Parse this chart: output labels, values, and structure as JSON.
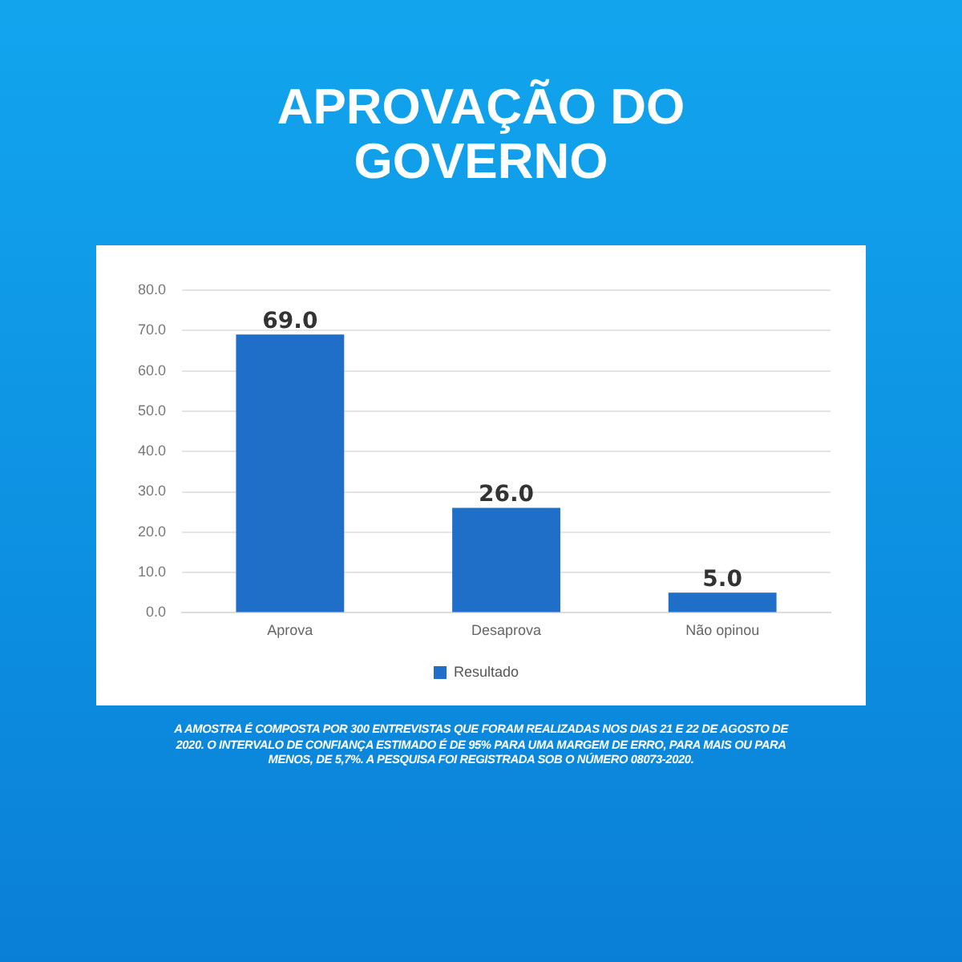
{
  "chart_data": {
    "type": "bar",
    "title": "APROVAÇÃO DO GOVERNO",
    "categories": [
      "Aprova",
      "Desaprova",
      "Não opinou"
    ],
    "series": [
      {
        "name": "Resultado",
        "color": "#1f6fc8",
        "values": [
          69,
          26,
          5
        ],
        "value_labels": [
          "69.0",
          "26.0",
          "5.0"
        ]
      }
    ],
    "ylim": [
      0,
      80
    ],
    "yticks": [
      {
        "value": 0,
        "label": "0.0"
      },
      {
        "value": 10,
        "label": "10.0"
      },
      {
        "value": 20,
        "label": "20.0"
      },
      {
        "value": 30,
        "label": "30.0"
      },
      {
        "value": 40,
        "label": "40.0"
      },
      {
        "value": 50,
        "label": "50.0"
      },
      {
        "value": 60,
        "label": "60.0"
      },
      {
        "value": 70,
        "label": "70.0"
      },
      {
        "value": 80,
        "label": "80.0"
      }
    ],
    "grid": "y",
    "legend": "bottom",
    "annotations": [
      "A AMOSTRA É COMPOSTA POR 300 ENTREVISTAS QUE FORAM REALIZADAS NOS DIAS 21 E 22 DE AGOSTO DE 2020. O INTERVALO DE CONFIANÇA ESTIMADO É DE 95% PARA UMA MARGEM DE ERRO, PARA MAIS OU PARA MENOS, DE 5,7%. A PESQUISA FOI REGISTRADA SOB O NÚMERO 08073-2020."
    ]
  }
}
